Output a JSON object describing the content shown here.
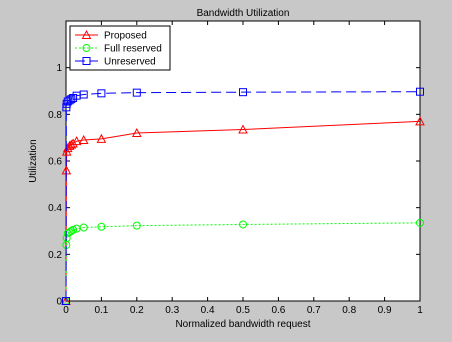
{
  "chart_data": {
    "type": "line",
    "title": "Bandwidth Utilization",
    "xlabel": "Normalized bandwidth request",
    "ylabel": "Utilization",
    "xlim": [
      0,
      1
    ],
    "ylim": [
      0,
      1.2
    ],
    "xticks": [
      0,
      0.1,
      0.2,
      0.3,
      0.4,
      0.5,
      0.6,
      0.7,
      0.8,
      0.9,
      1
    ],
    "xtick_labels": [
      "0",
      "0.1",
      "0.2",
      "0.3",
      "0.4",
      "0.5",
      "0.6",
      "0.7",
      "0.8",
      "0.9",
      "1"
    ],
    "yticks": [
      0,
      0.2,
      0.4,
      0.6,
      0.8,
      1
    ],
    "ytick_labels": [
      "0",
      "0.2",
      "0.4",
      "0.6",
      "0.8",
      "1"
    ],
    "grid": false,
    "legend_position": "top-left",
    "series": [
      {
        "name": "Proposed",
        "color": "#ff0000",
        "dash": "solid",
        "marker": "triangle",
        "x": [
          0,
          0.001,
          0.002,
          0.005,
          0.01,
          0.015,
          0.02,
          0.03,
          0.05,
          0.1,
          0.2,
          0.5,
          1.0
        ],
        "y": [
          0,
          0.56,
          0.64,
          0.655,
          0.665,
          0.67,
          0.675,
          0.685,
          0.69,
          0.695,
          0.72,
          0.735,
          0.77
        ]
      },
      {
        "name": "Full reserved",
        "color": "#00ff00",
        "dash": "dotted",
        "marker": "circle",
        "x": [
          0,
          0.001,
          0.002,
          0.005,
          0.01,
          0.015,
          0.02,
          0.03,
          0.05,
          0.1,
          0.2,
          0.5,
          1.0
        ],
        "y": [
          0,
          0.24,
          0.27,
          0.29,
          0.295,
          0.3,
          0.305,
          0.31,
          0.315,
          0.318,
          0.323,
          0.328,
          0.335
        ]
      },
      {
        "name": "Unreserved",
        "color": "#0000ff",
        "dash": "dashed",
        "marker": "square",
        "x": [
          0,
          0.001,
          0.002,
          0.005,
          0.01,
          0.015,
          0.02,
          0.03,
          0.05,
          0.1,
          0.2,
          0.5,
          1.0
        ],
        "y": [
          0,
          0.83,
          0.845,
          0.855,
          0.86,
          0.865,
          0.87,
          0.88,
          0.885,
          0.89,
          0.893,
          0.895,
          0.897
        ]
      }
    ]
  }
}
